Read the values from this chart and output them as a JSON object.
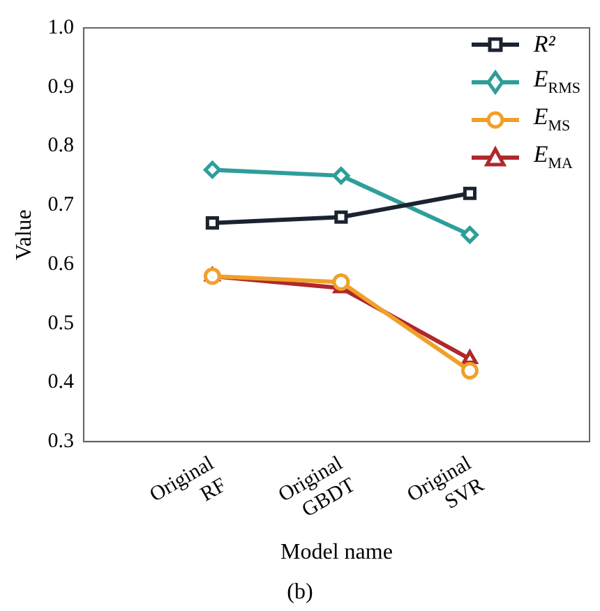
{
  "chart_data": {
    "type": "line",
    "xlabel": "Model name",
    "ylabel": "Value",
    "categories": [
      "Original RF",
      "Original GBDT",
      "Original SVR"
    ],
    "ylim": [
      0.3,
      1.0
    ],
    "yticks": [
      0.3,
      0.4,
      0.5,
      0.6,
      0.7,
      0.8,
      0.9,
      {
        "value": 1,
        "label": "1.0"
      }
    ],
    "grid": false,
    "legend": "top right",
    "line_style": "solid",
    "annotations": [
      "(b)"
    ],
    "series": [
      {
        "name": "R²",
        "color": "#1b2330",
        "marker": "square",
        "values": [
          0.67,
          0.68,
          0.72
        ]
      },
      {
        "name": "E$_{RMS}$",
        "color": "#2e9e9a",
        "marker": "diamond",
        "values": [
          0.76,
          0.75,
          0.65
        ]
      },
      {
        "name": "E$_{MS}$",
        "color": "#f0a02a",
        "marker": "circle",
        "values": [
          0.58,
          0.57,
          0.42
        ]
      },
      {
        "name": "E$_{MA}$",
        "color": "#b0282c",
        "marker": "triangle",
        "values": [
          0.58,
          0.56,
          0.44
        ]
      }
    ]
  }
}
